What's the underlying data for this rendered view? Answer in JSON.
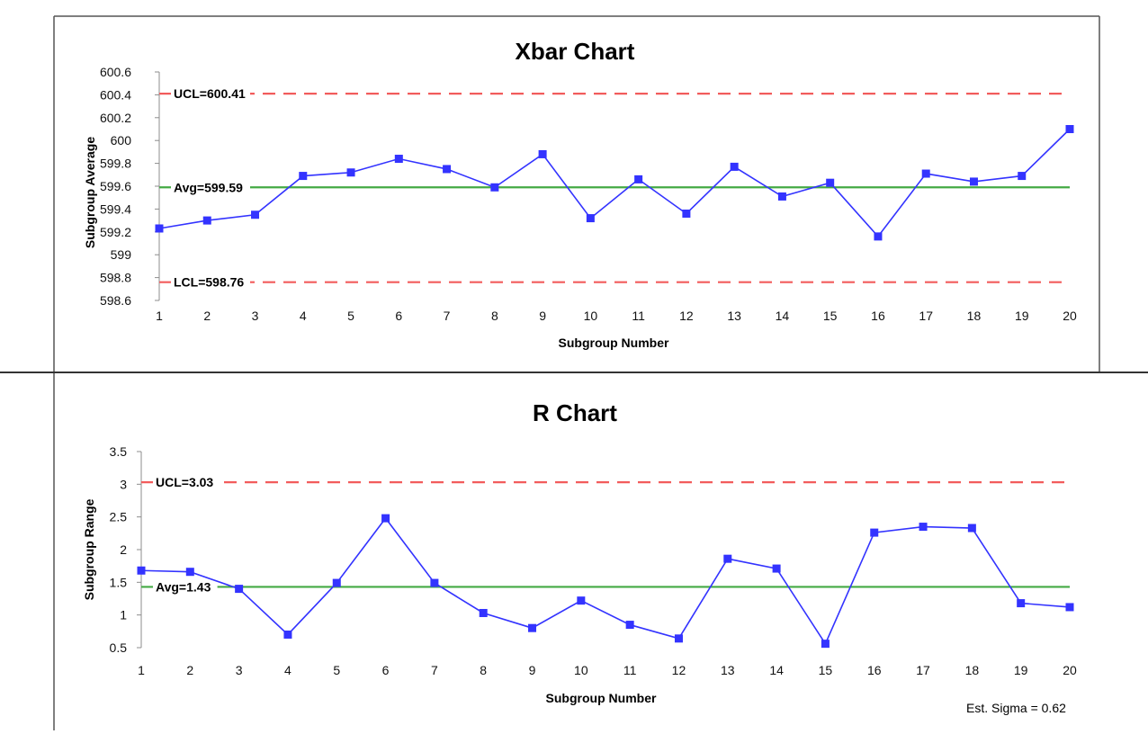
{
  "colors": {
    "series": "#3333ff",
    "control_limit": "#f25c5c",
    "average": "#44aa44",
    "frame": "#555555",
    "divider": "#333333"
  },
  "footnote": "Est. Sigma = 0.62",
  "chart_data": [
    {
      "type": "line",
      "title": "Xbar Chart",
      "xlabel": "Subgroup Number",
      "ylabel": "Subgroup Average",
      "ylim": [
        598.6,
        600.6
      ],
      "yticks": [
        "598.6",
        "598.8",
        "599",
        "599.2",
        "599.4",
        "599.6",
        "599.8",
        "600",
        "600.2",
        "600.4",
        "600.6"
      ],
      "x": [
        1,
        2,
        3,
        4,
        5,
        6,
        7,
        8,
        9,
        10,
        11,
        12,
        13,
        14,
        15,
        16,
        17,
        18,
        19,
        20
      ],
      "values": [
        599.23,
        599.3,
        599.35,
        599.69,
        599.72,
        599.84,
        599.75,
        599.59,
        599.88,
        599.32,
        599.66,
        599.36,
        599.77,
        599.51,
        599.63,
        599.16,
        599.71,
        599.64,
        599.69,
        600.1
      ],
      "control_lines": [
        {
          "label": "UCL=600.41",
          "value": 600.41,
          "style": "dashed"
        },
        {
          "label": "Avg=599.59",
          "value": 599.59,
          "style": "solid"
        },
        {
          "label": "LCL=598.76",
          "value": 598.76,
          "style": "dashed"
        }
      ],
      "grid": false
    },
    {
      "type": "line",
      "title": "R Chart",
      "xlabel": "Subgroup Number",
      "ylabel": "Subgroup Range",
      "ylim": [
        0.5,
        3.5
      ],
      "yticks": [
        "0.5",
        "1",
        "1.5",
        "2",
        "2.5",
        "3",
        "3.5"
      ],
      "x": [
        1,
        2,
        3,
        4,
        5,
        6,
        7,
        8,
        9,
        10,
        11,
        12,
        13,
        14,
        15,
        16,
        17,
        18,
        19,
        20
      ],
      "values": [
        1.68,
        1.66,
        1.4,
        0.7,
        1.49,
        2.48,
        1.49,
        1.03,
        0.8,
        1.22,
        0.85,
        0.64,
        1.86,
        1.71,
        0.56,
        2.26,
        2.35,
        2.33,
        1.18,
        1.12
      ],
      "control_lines": [
        {
          "label": "UCL=3.03",
          "value": 3.03,
          "style": "dashed"
        },
        {
          "label": "Avg=1.43",
          "value": 1.43,
          "style": "solid"
        }
      ],
      "grid": false
    }
  ]
}
